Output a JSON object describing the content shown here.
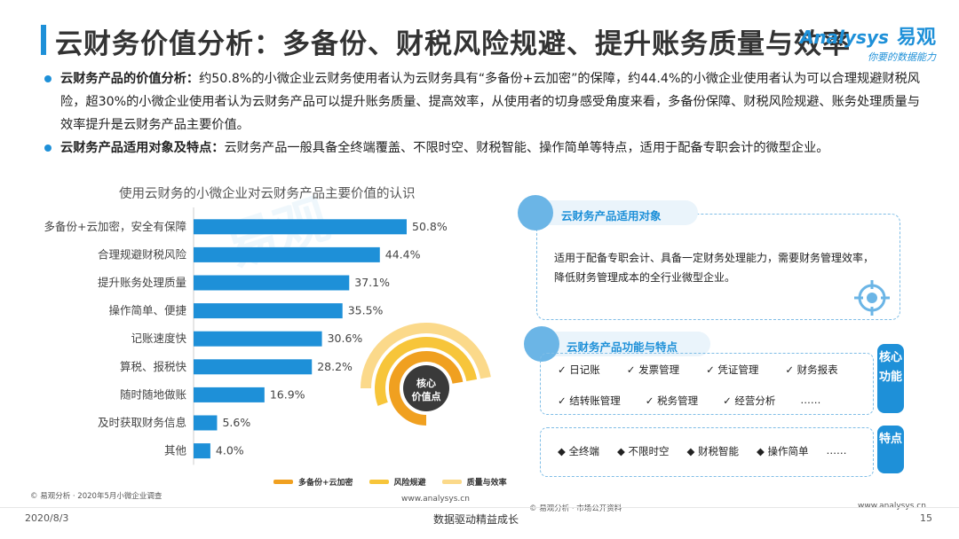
{
  "header": {
    "title": "云财务价值分析：多备份、财税风险规避、提升账务质量与效率",
    "logo_en": "Analysys",
    "logo_cn": "易观",
    "logo_slogan": "你要的数据能力"
  },
  "bullets": [
    {
      "label": "云财务产品的价值分析：",
      "text": "约50.8%的小微企业云财务使用者认为云财务具有“多备份+云加密”的保障，约44.4%的小微企业使用者认为可以合理规避财税风险，超30%的小微企业使用者认为云财务产品可以提升账务质量、提高效率，从使用者的切身感受角度来看，多备份保障、财税风险规避、账务处理质量与效率提升是云财务产品主要价值。"
    },
    {
      "label": "云财务产品适用对象及特点：",
      "text": "云财务产品一般具备全终端覆盖、不限时空、财税智能、操作简单等特点，适用于配备专职会计的微型企业。"
    }
  ],
  "chart_data": {
    "type": "bar",
    "orientation": "horizontal",
    "title": "使用云财务的小微企业对云财务产品主要价值的认识",
    "categories": [
      "多备份+云加密，安全有保障",
      "合理规避财税风险",
      "提升账务处理质量",
      "操作简单、便捷",
      "记账速度快",
      "算税、报税快",
      "随时随地做账",
      "及时获取财务信息",
      "其他"
    ],
    "values": [
      50.8,
      44.4,
      37.1,
      35.5,
      30.6,
      28.2,
      16.9,
      5.6,
      4.0
    ],
    "value_labels": [
      "50.8%",
      "44.4%",
      "37.1%",
      "35.5%",
      "30.6%",
      "28.2%",
      "16.9%",
      "5.6%",
      "4.0%"
    ],
    "xlim": [
      0,
      60
    ],
    "bar_color": "#1e90d8"
  },
  "ring": {
    "center_line1": "核心",
    "center_line2": "价值点",
    "legend": [
      {
        "label": "多备份+云加密",
        "color": "#f0a020"
      },
      {
        "label": "风险规避",
        "color": "#f7c53a"
      },
      {
        "label": "质量与效率",
        "color": "#fbd98a"
      }
    ]
  },
  "sources": {
    "left": "© 易观分析 · 2020年5月小微企业调查",
    "left_site": "www.analysys.cn",
    "right": "© 易观分析 · 市场公开资料",
    "right_site": "www.analysys.cn"
  },
  "footer": {
    "date": "2020/8/3",
    "center": "数据驱动精益成长",
    "page": "15"
  },
  "panel_target": {
    "title": "云财务产品适用对象",
    "body": "适用于配备专职会计、具备一定财务处理能力，需要财务管理效率，降低财务管理成本的全行业微型企业。"
  },
  "panel_features": {
    "title": "云财务产品功能与特点",
    "core_tag": "核心功能",
    "core_row1": [
      "✓ 日记账",
      "✓ 发票管理",
      "✓ 凭证管理",
      "✓ 财务报表"
    ],
    "core_row2": [
      "✓ 结转账管理",
      "✓ 税务管理",
      "✓ 经营分析",
      "……"
    ],
    "feature_tag": "特点",
    "feature_row": [
      "◆ 全终端",
      "◆ 不限时空",
      "◆ 财税智能",
      "◆ 操作简单",
      "……"
    ]
  },
  "watermark": "易观"
}
